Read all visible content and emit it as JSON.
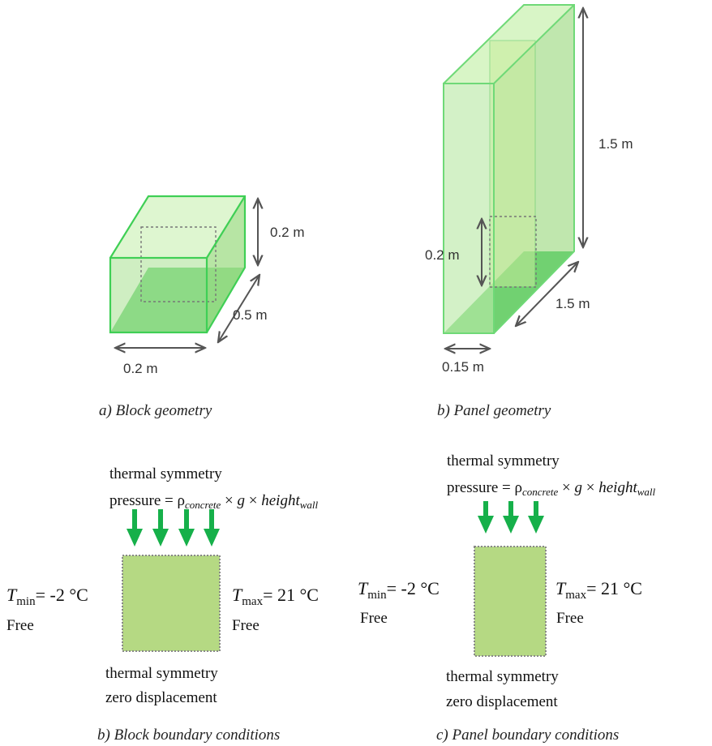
{
  "block_geometry": {
    "dim_height": "0.2 m",
    "dim_depth": "0.5 m",
    "dim_width": "0.2 m",
    "caption": "a) Block geometry"
  },
  "panel_geometry": {
    "dim_height": "1.5 m",
    "dim_sub_height": "0.2 m",
    "dim_depth": "1.5 m",
    "dim_width": "0.15 m",
    "caption": "b) Panel geometry"
  },
  "block_bc": {
    "top_line1": "thermal symmetry",
    "pressure_label": "pressure = ",
    "rho": "ρ",
    "rho_sub": "concrete",
    "times": " × ",
    "g": "g",
    "height": "height",
    "height_sub": "wall",
    "tmin_T": "T",
    "tmin_sub": "min",
    "tmin_val": "= -2 °C",
    "tmax_T": "T",
    "tmax_sub": "max",
    "tmax_val": "= 21 °C",
    "left_free": "Free",
    "right_free": "Free",
    "bottom_line1": "thermal symmetry",
    "bottom_line2": "zero displacement",
    "caption": "b) Block boundary conditions"
  },
  "panel_bc": {
    "top_line1": "thermal symmetry",
    "pressure_label": "pressure = ",
    "rho": "ρ",
    "rho_sub": "concrete",
    "times": " × ",
    "g": "g",
    "height": "height",
    "height_sub": "wall",
    "tmin_T": "T",
    "tmin_sub": "min",
    "tmin_val": "= -2 °C",
    "tmax_T": "T",
    "tmax_sub": "max",
    "tmax_val": "= 21 °C",
    "left_free": "Free",
    "right_free": "Free",
    "bottom_line1": "thermal symmetry",
    "bottom_line2": "zero displacement",
    "caption": "c) Panel boundary conditions"
  },
  "colors": {
    "green_light": "#c8f0b0",
    "green_mid": "#8fdc7a",
    "green_dark": "#3cc24a",
    "edge_green": "#3fcf55",
    "bc_fill": "#b5d983",
    "arrow_green": "#16b04a",
    "dim_gray": "#555555"
  }
}
